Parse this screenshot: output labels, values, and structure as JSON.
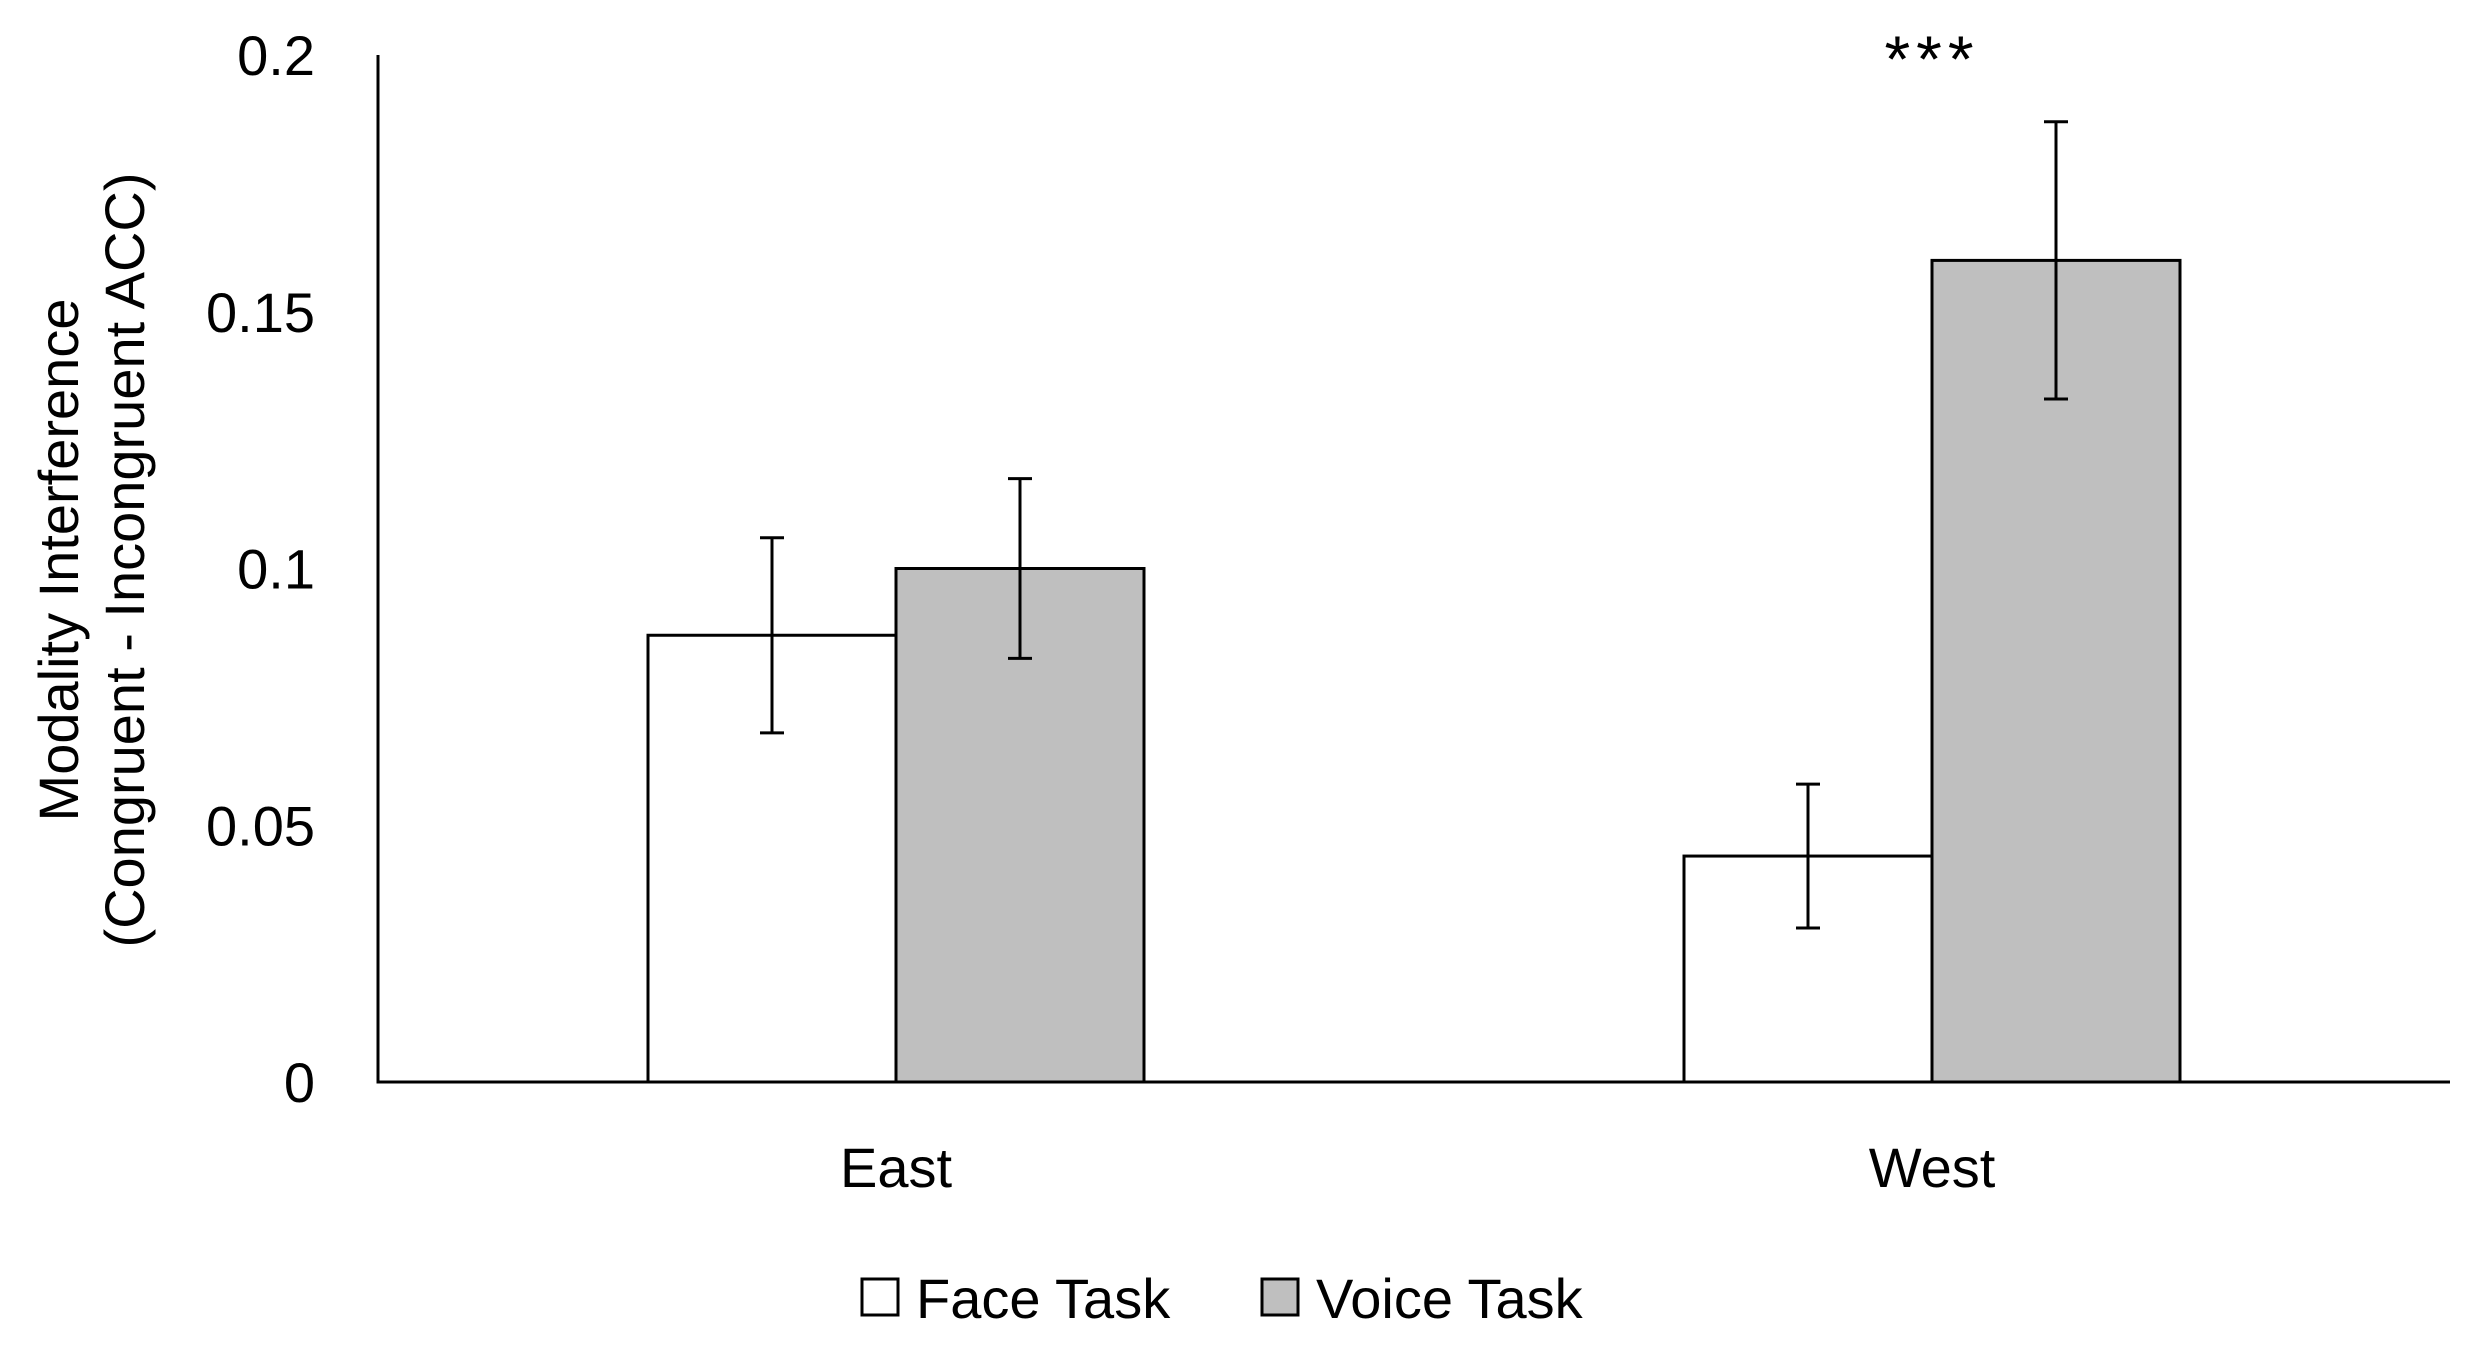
{
  "chart_data": {
    "type": "bar",
    "title": "",
    "xlabel": "",
    "ylabel": [
      "Modality Interference",
      "(Congruent - Incongruent ACC)"
    ],
    "categories": [
      "East",
      "West"
    ],
    "ylim": [
      0,
      0.2
    ],
    "yticks": [
      "0",
      "0.05",
      "0.1",
      "0.15",
      "0.2"
    ],
    "grid": false,
    "legend_position": "bottom",
    "series": [
      {
        "name": "Face Task",
        "color": "#ffffff",
        "values": [
          0.087,
          0.044
        ],
        "errors": [
          0.019,
          0.014
        ]
      },
      {
        "name": "Voice Task",
        "color": "#bfbfbf",
        "values": [
          0.1,
          0.16
        ],
        "errors": [
          0.0175,
          0.027
        ]
      }
    ],
    "annotations": [
      {
        "category": "West",
        "text": "***"
      }
    ]
  }
}
